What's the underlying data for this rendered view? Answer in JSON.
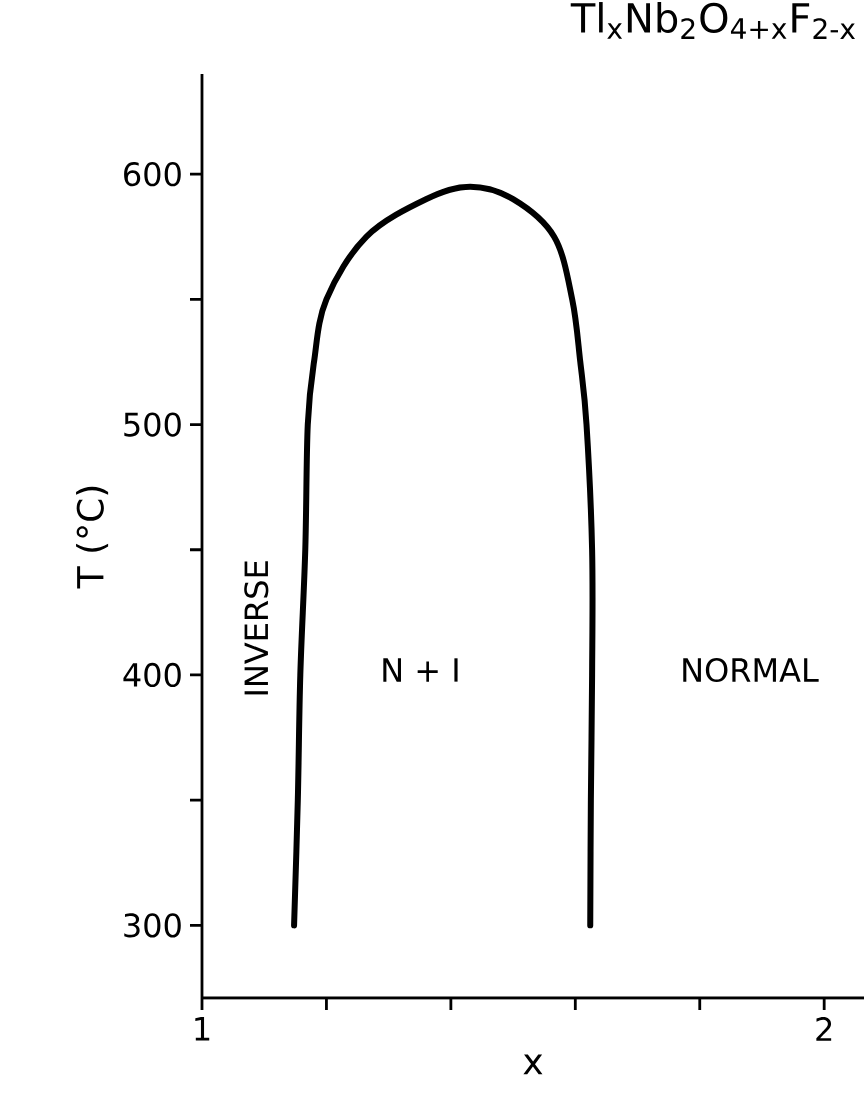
{
  "chart_data": {
    "type": "line",
    "title": "Tl$_{x}$Nb$_{2}$O$_{4+x}$F$_{2-x}$",
    "xlabel": "x",
    "ylabel": "T (°C)",
    "xlim": [
      1,
      2.064
    ],
    "ylim": [
      271,
      640
    ],
    "xticks": [
      1,
      {
        "value": 1.2,
        "label": null
      },
      {
        "value": 1.4,
        "label": null
      },
      {
        "value": 1.6,
        "label": null
      },
      {
        "value": 1.8,
        "label": null
      },
      2
    ],
    "yticks": [
      300,
      {
        "value": 350,
        "label": null
      },
      400,
      {
        "value": 450,
        "label": null
      },
      500,
      {
        "value": 550,
        "label": null
      },
      600
    ],
    "series": [
      {
        "color": "#000000",
        "x": [
          1.148,
          1.154,
          1.158,
          1.166,
          1.17,
          1.18,
          1.2,
          1.264,
          1.36,
          1.431,
          1.5,
          1.566,
          1.595,
          1.608,
          1.618,
          1.627,
          1.627,
          1.625,
          1.624
        ],
        "values": [
          300,
          350,
          400,
          450,
          500,
          525,
          550,
          575,
          590,
          595,
          590,
          575,
          550,
          525,
          500,
          450,
          400,
          350,
          300
        ]
      }
    ],
    "annotations": [
      "INVERSE",
      "N + I",
      "NORMAL"
    ]
  }
}
